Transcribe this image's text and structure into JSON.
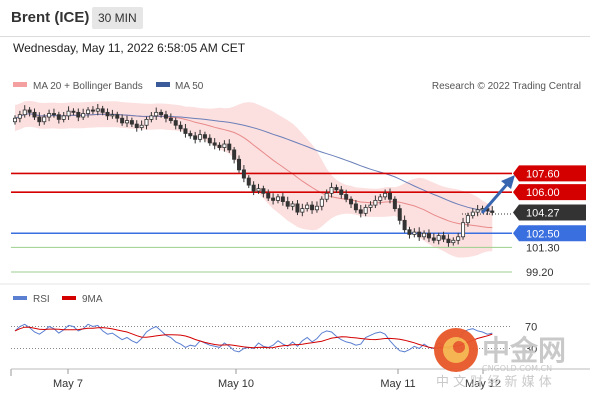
{
  "header": {
    "instrument": "Brent (ICE)",
    "timeframe": "30 MIN"
  },
  "timestamp": "Wednesday, May 11, 2022 6:58:05 AM CET",
  "legend": {
    "ma20_bb": "MA 20 + Bollinger Bands",
    "ma50": "MA 50",
    "credit": "Research © 2022 Trading Central",
    "rsi": "RSI",
    "rsi_ma": "9MA"
  },
  "colors": {
    "up_candle": "#ffffff",
    "down_candle": "#333333",
    "band": "#fcd9d9",
    "ma20": "#e88a8a",
    "ma50": "#6a7fb8",
    "resistance": "#d40000",
    "pivot": "#3a6fe0",
    "support": "#9ccf8c",
    "arrow": "#3865b0",
    "rsi": "#5b7fd1",
    "rsi_ma": "#d40000",
    "last_price_bg": "#333333"
  },
  "watermark": {
    "name": "中金网",
    "domain": "CNGOLD.COM.CN",
    "tagline": "中 文 财 经 新 媒 体"
  },
  "chart_data": {
    "type": "candlestick",
    "x_labels": [
      "May 7",
      "May 10",
      "May 11",
      "May 12"
    ],
    "last_price": 104.27,
    "levels": [
      {
        "label": "107.60",
        "value": 107.6,
        "kind": "resistance"
      },
      {
        "label": "106.00",
        "value": 106.0,
        "kind": "resistance"
      },
      {
        "label": "102.50",
        "value": 102.5,
        "kind": "pivot"
      },
      {
        "label": "101.30",
        "value": 101.3,
        "kind": "support"
      },
      {
        "label": "99.20",
        "value": 99.2,
        "kind": "support"
      }
    ],
    "rsi_levels": [
      {
        "label": "70",
        "value": 70
      },
      {
        "label": "30",
        "value": 30
      }
    ],
    "price_range": [
      99.2,
      113.0
    ],
    "close": [
      112.3,
      112.6,
      113.0,
      112.8,
      112.4,
      112.0,
      112.4,
      112.7,
      112.6,
      112.2,
      112.5,
      112.9,
      112.8,
      112.4,
      112.7,
      113.0,
      112.9,
      113.1,
      112.8,
      112.5,
      112.6,
      112.3,
      111.9,
      112.1,
      111.8,
      111.5,
      111.7,
      112.2,
      112.5,
      112.8,
      112.6,
      112.3,
      112.1,
      111.7,
      111.4,
      111.0,
      110.8,
      110.5,
      110.9,
      110.6,
      110.2,
      110.0,
      109.8,
      110.1,
      109.6,
      108.8,
      107.9,
      107.2,
      106.6,
      106.1,
      106.3,
      105.9,
      105.5,
      105.3,
      105.6,
      105.2,
      104.8,
      105.0,
      104.3,
      104.6,
      104.9,
      104.5,
      104.8,
      105.4,
      105.9,
      106.4,
      106.2,
      105.8,
      105.4,
      105.0,
      104.5,
      104.2,
      104.7,
      104.9,
      105.3,
      105.6,
      105.9,
      105.4,
      104.6,
      103.6,
      102.8,
      102.4,
      102.6,
      102.2,
      102.5,
      102.1,
      101.9,
      102.3,
      102.0,
      101.7,
      101.9,
      102.2,
      103.4,
      104.0,
      104.3,
      104.5,
      104.6,
      104.4,
      104.27
    ],
    "rsi_range": [
      0,
      100
    ],
    "rsi": [
      62,
      70,
      74,
      68,
      60,
      56,
      62,
      70,
      66,
      58,
      64,
      72,
      70,
      62,
      66,
      74,
      70,
      72,
      62,
      56,
      58,
      52,
      46,
      50,
      44,
      40,
      48,
      60,
      66,
      70,
      62,
      54,
      50,
      42,
      38,
      32,
      36,
      34,
      44,
      40,
      36,
      34,
      32,
      40,
      34,
      26,
      24,
      30,
      32,
      30,
      40,
      34,
      32,
      36,
      44,
      38,
      34,
      42,
      34,
      44,
      50,
      42,
      48,
      58,
      62,
      60,
      52,
      46,
      42,
      40,
      36,
      38,
      50,
      54,
      58,
      60,
      56,
      44,
      34,
      26,
      24,
      28,
      34,
      30,
      38,
      32,
      30,
      40,
      34,
      30,
      36,
      44,
      60,
      64,
      66,
      62,
      60,
      56,
      58
    ]
  }
}
